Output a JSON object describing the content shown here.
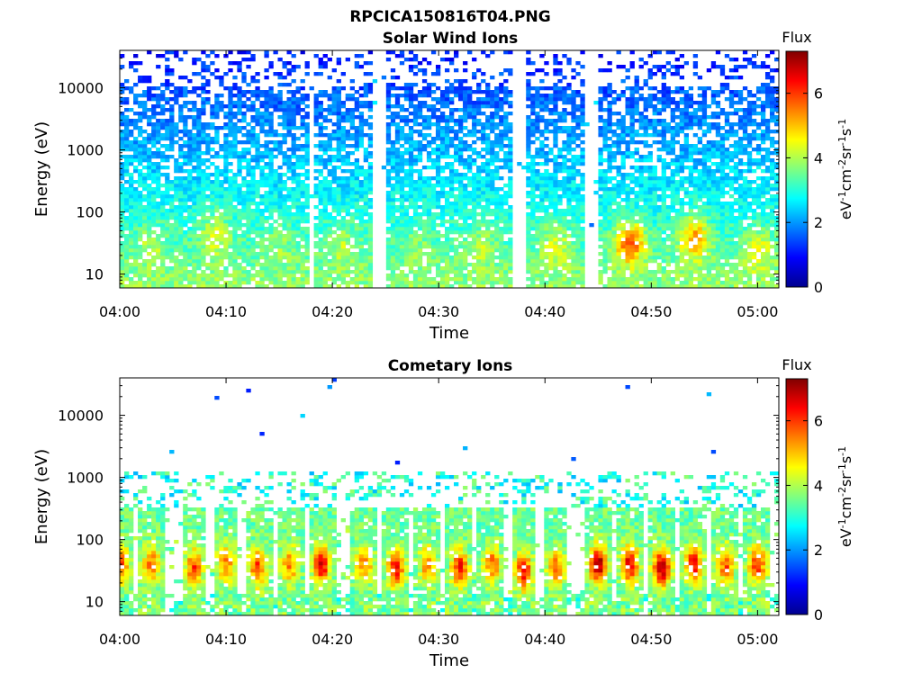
{
  "figure_title": "RPCICA150816T04.PNG",
  "chart_data": [
    {
      "type": "heatmap",
      "title": "Solar Wind Ions",
      "xlabel": "Time",
      "ylabel": "Energy (eV)",
      "xlim": [
        "04:00",
        "05:02"
      ],
      "ylim": [
        6,
        40000
      ],
      "yscale": "log",
      "x_ticks": [
        "04:00",
        "04:10",
        "04:20",
        "04:30",
        "04:40",
        "04:50",
        "05:00"
      ],
      "y_ticks": [
        "10",
        "100",
        "1000",
        "10000"
      ],
      "colorbar": {
        "label_top": "Flux",
        "units": "eV-1cm-2sr-1s-1",
        "range": [
          0,
          7.3
        ],
        "ticks": [
          "0",
          "2",
          "4",
          "6"
        ],
        "colormap": "jet"
      },
      "bursts": [
        {
          "center": "04:03",
          "peak_flux": 4.2,
          "hot_energy": 30
        },
        {
          "center": "04:09",
          "peak_flux": 4.6,
          "hot_energy": 45
        },
        {
          "center": "04:15",
          "peak_flux": 4.0,
          "hot_energy": 30
        },
        {
          "center": "04:21",
          "peak_flux": 4.2,
          "hot_energy": 30
        },
        {
          "center": "04:28",
          "peak_flux": 3.9,
          "hot_energy": 30
        },
        {
          "center": "04:34",
          "peak_flux": 4.2,
          "hot_energy": 30
        },
        {
          "center": "04:41",
          "peak_flux": 4.5,
          "hot_energy": 30
        },
        {
          "center": "04:48",
          "peak_flux": 5.9,
          "hot_energy": 32
        },
        {
          "center": "04:54",
          "peak_flux": 5.5,
          "hot_energy": 40
        },
        {
          "center": "05:00",
          "peak_flux": 4.6,
          "hot_energy": 25
        }
      ]
    },
    {
      "type": "heatmap",
      "title": "Cometary Ions",
      "xlabel": "Time",
      "ylabel": "Energy (eV)",
      "xlim": [
        "04:00",
        "05:02"
      ],
      "ylim": [
        6,
        40000
      ],
      "yscale": "log",
      "x_ticks": [
        "04:00",
        "04:10",
        "04:20",
        "04:30",
        "04:40",
        "04:50",
        "05:00"
      ],
      "y_ticks": [
        "10",
        "100",
        "1000",
        "10000"
      ],
      "colorbar": {
        "label_top": "Flux",
        "units": "eV-1cm-2sr-1s-1",
        "range": [
          0,
          7.3
        ],
        "ticks": [
          "0",
          "2",
          "4",
          "6"
        ],
        "colormap": "jet"
      },
      "bursts": [
        {
          "center": "04:00",
          "peak_flux": 6.2,
          "hot_energy": 40
        },
        {
          "center": "04:03",
          "peak_flux": 5.5,
          "hot_energy": 40
        },
        {
          "center": "04:07",
          "peak_flux": 6.0,
          "hot_energy": 35
        },
        {
          "center": "04:10",
          "peak_flux": 5.5,
          "hot_energy": 40
        },
        {
          "center": "04:13",
          "peak_flux": 6.0,
          "hot_energy": 35
        },
        {
          "center": "04:16",
          "peak_flux": 5.5,
          "hot_energy": 40
        },
        {
          "center": "04:19",
          "peak_flux": 6.6,
          "hot_energy": 40
        },
        {
          "center": "04:23",
          "peak_flux": 5.5,
          "hot_energy": 40
        },
        {
          "center": "04:26",
          "peak_flux": 6.4,
          "hot_energy": 35
        },
        {
          "center": "04:29",
          "peak_flux": 5.5,
          "hot_energy": 40
        },
        {
          "center": "04:32",
          "peak_flux": 6.3,
          "hot_energy": 35
        },
        {
          "center": "04:35",
          "peak_flux": 5.6,
          "hot_energy": 40
        },
        {
          "center": "04:38",
          "peak_flux": 6.4,
          "hot_energy": 30
        },
        {
          "center": "04:41",
          "peak_flux": 5.6,
          "hot_energy": 35
        },
        {
          "center": "04:45",
          "peak_flux": 7.1,
          "hot_energy": 40
        },
        {
          "center": "04:48",
          "peak_flux": 6.6,
          "hot_energy": 40
        },
        {
          "center": "04:51",
          "peak_flux": 7.0,
          "hot_energy": 35
        },
        {
          "center": "04:54",
          "peak_flux": 6.4,
          "hot_energy": 40
        },
        {
          "center": "04:57",
          "peak_flux": 5.8,
          "hot_energy": 40
        },
        {
          "center": "05:00",
          "peak_flux": 6.2,
          "hot_energy": 40
        }
      ]
    }
  ]
}
